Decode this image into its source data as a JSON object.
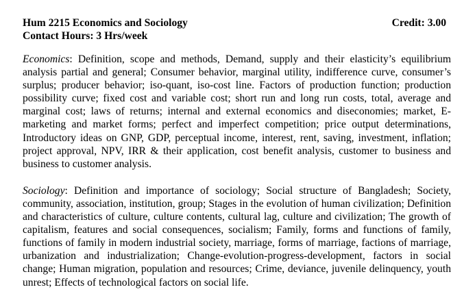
{
  "course": {
    "code_title": "Hum 2215 Economics and Sociology",
    "credit": "Credit: 3.00",
    "contact_hours": "Contact Hours: 3 Hrs/week"
  },
  "sections": {
    "economics": {
      "title": "Economics",
      "body": ": Definition, scope and methods, Demand, supply and their elasticity’s equilibrium analysis partial and general; Consumer behavior, marginal utility, indifference curve, consumer’s surplus; producer behavior; iso-quant, iso-cost line. Factors of production function; production possibility curve; fixed cost and variable cost; short run and long run costs, total, average and marginal cost; laws of returns; internal and external economics and diseconomies; market, E-marketing and market forms; perfect and imperfect competition; price output determinations, Introductory ideas on GNP, GDP, perceptual income, interest, rent, saving, investment, inflation; project approval, NPV, IRR & their application, cost benefit analysis, customer to business and business to customer analysis."
    },
    "sociology": {
      "title": "Sociology",
      "body": ": Definition and importance of sociology; Social structure of Bangladesh; Society, community, association, institution, group; Stages in the evolution of human civilization; Definition and characteristics of culture, culture contents, cultural lag, culture and civilization; The growth of capitalism, features and social consequences, socialism; Family, forms and functions of family, functions of family in modern industrial society, marriage, forms of marriage, factions of marriage, urbanization and industrialization; Change-evolution-progress-development, factors in social change; Human migration, population and resources; Crime, deviance, juvenile delinquency, youth unrest; Effects of technological factors on social life."
    }
  }
}
